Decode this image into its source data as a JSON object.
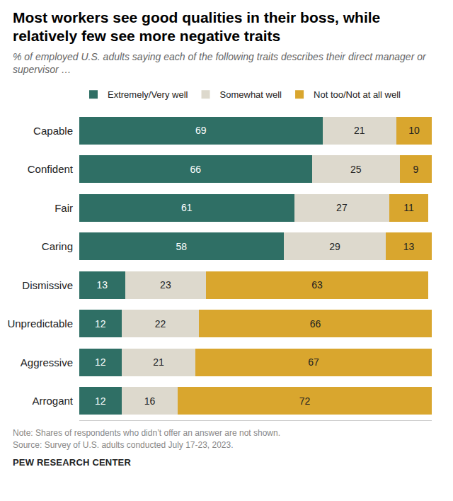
{
  "chart_data": {
    "type": "bar",
    "orientation": "horizontal",
    "stacked": true,
    "data_labels": true,
    "tick_labels": "y",
    "grid": false,
    "legend": "top",
    "title": "Most workers see good qualities in their boss, while relatively few see more negative traits",
    "subtitle": "% of employed U.S. adults saying each of the following traits describes their direct manager or supervisor …",
    "categories": [
      "Capable",
      "Confident",
      "Fair",
      "Caring",
      "Dismissive",
      "Unpredictable",
      "Aggressive",
      "Arrogant"
    ],
    "series": [
      {
        "name": "Extremely/Very well",
        "color": "#2f6f65",
        "values": [
          69,
          66,
          61,
          58,
          13,
          12,
          12,
          12
        ]
      },
      {
        "name": "Somewhat well",
        "color": "#ddd9cd",
        "values": [
          21,
          25,
          27,
          29,
          23,
          22,
          21,
          16
        ]
      },
      {
        "name": "Not too/Not at all well",
        "color": "#d9a62e",
        "values": [
          10,
          9,
          11,
          13,
          63,
          66,
          67,
          72
        ]
      }
    ],
    "xlim": [
      0,
      100
    ],
    "xticks": [],
    "note": "Note: Shares of respondents who didn’t offer an answer are not shown.",
    "source": "Source: Survey of U.S. adults conducted July 17-23, 2023.",
    "credit": "PEW RESEARCH CENTER"
  }
}
